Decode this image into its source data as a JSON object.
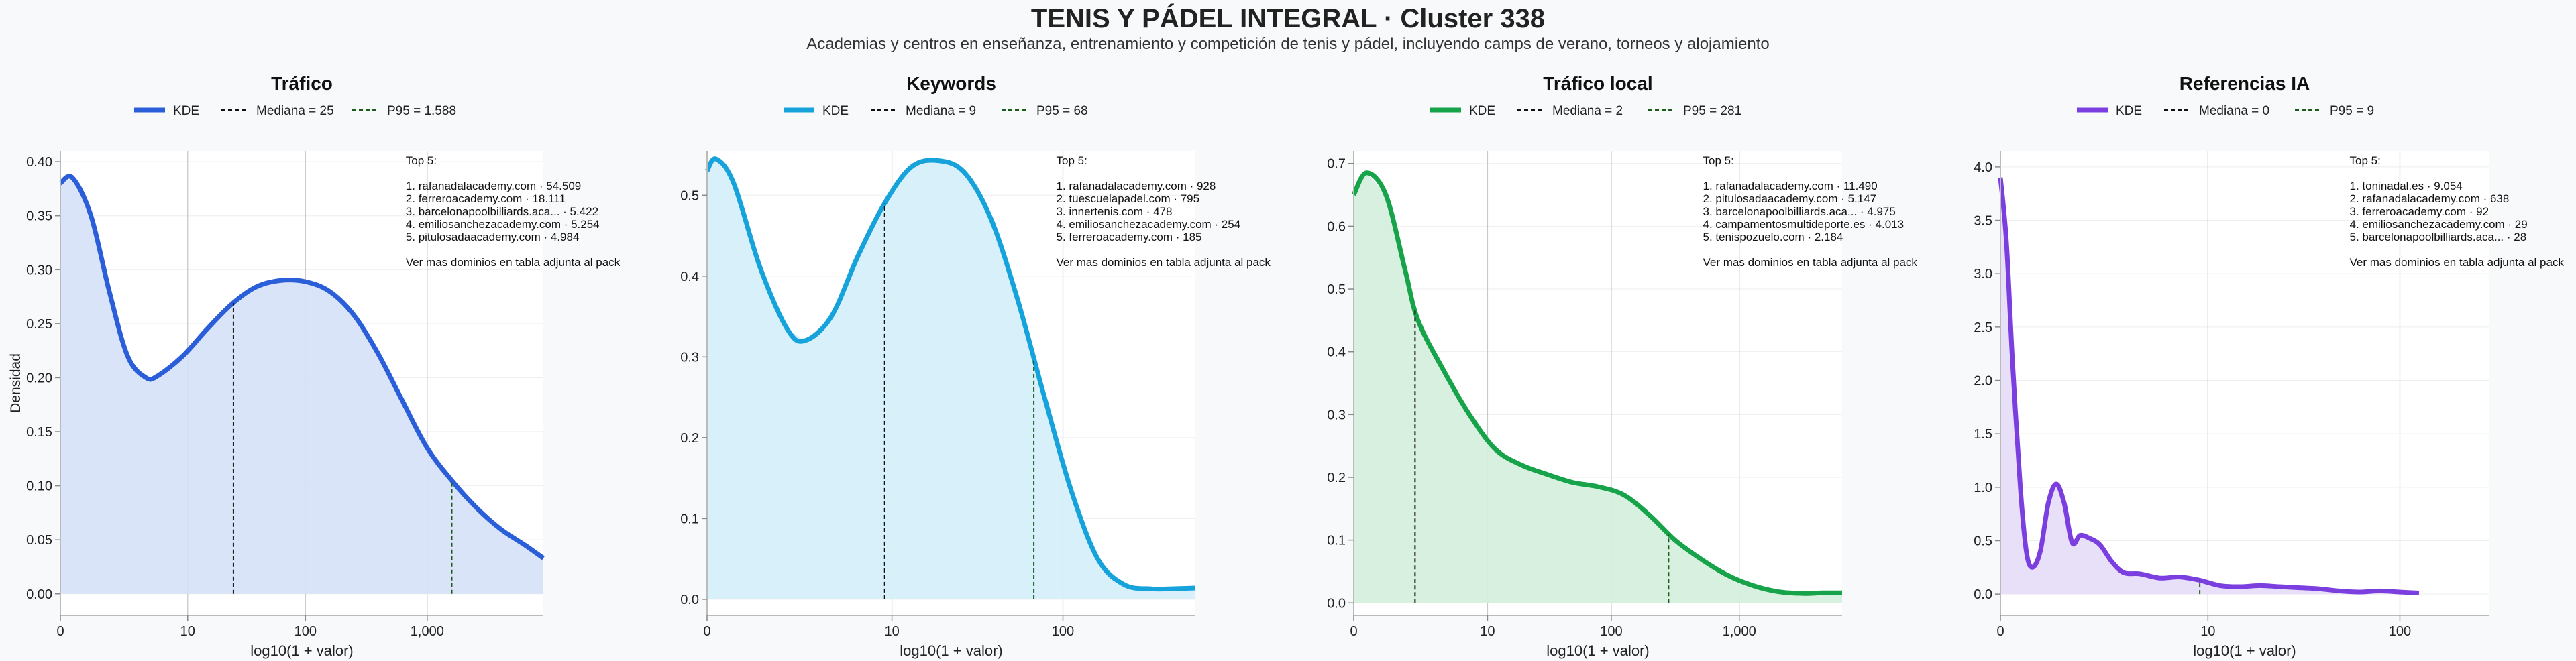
{
  "title": "TENIS Y PÁDEL INTEGRAL · Cluster 338",
  "subtitle": "Academias y centros en enseñanza, entrenamiento y competición de tenis y pádel, incluyendo camps de verano, torneos y alojamiento",
  "shared": {
    "ylabel": "Densidad",
    "xlabel": "log10(1 + valor)",
    "legend_kde": "KDE",
    "top_heading": "Top 5:",
    "footer_note": "Ver mas dominios en tabla adjunta al pack"
  },
  "chart_data": [
    {
      "type": "area",
      "title": "Tráfico",
      "xlabel": "log10(1 + valor)",
      "ylabel": "Densidad",
      "color": "#2b5fd9",
      "fill": "#d6e1f8",
      "xlim": [
        0,
        3.95
      ],
      "ylim": [
        -0.02,
        0.41
      ],
      "yticks": [
        0,
        0.05,
        0.1,
        0.15,
        0.2,
        0.25,
        0.3,
        0.35,
        0.4
      ],
      "ytick_labels": [
        "0.00",
        "0.05",
        "0.10",
        "0.15",
        "0.20",
        "0.25",
        "0.30",
        "0.35",
        "0.40"
      ],
      "xticks": [
        0,
        1.041,
        2.004,
        3.0
      ],
      "xtick_labels": [
        "0",
        "10",
        "100",
        "1,000"
      ],
      "x": [
        0,
        0.1,
        0.25,
        0.4,
        0.55,
        0.7,
        0.8,
        1.0,
        1.2,
        1.4,
        1.6,
        1.8,
        2.0,
        2.2,
        2.4,
        2.6,
        2.8,
        3.0,
        3.2,
        3.4,
        3.6,
        3.8,
        3.95
      ],
      "y": [
        0.38,
        0.385,
        0.35,
        0.28,
        0.22,
        0.2,
        0.202,
        0.22,
        0.245,
        0.268,
        0.284,
        0.29,
        0.289,
        0.28,
        0.258,
        0.222,
        0.178,
        0.135,
        0.105,
        0.08,
        0.06,
        0.045,
        0.033
      ],
      "median": {
        "x": 1.415,
        "label": "Mediana = 25"
      },
      "p95": {
        "x": 3.201,
        "label": "P95 = 1.588"
      },
      "top5": [
        "1. rafanadalacademy.com · 54.509",
        "2. ferreroacademy.com · 18.111",
        "3. barcelonapoolbilliards.aca... · 5.422",
        "4. emiliosanchezacademy.com · 5.254",
        "5. pitulosadaacademy.com · 4.984"
      ]
    },
    {
      "type": "area",
      "title": "Keywords",
      "xlabel": "log10(1 + valor)",
      "ylabel": "Densidad",
      "color": "#16a3db",
      "fill": "#d3eefa",
      "xlim": [
        0,
        2.75
      ],
      "ylim": [
        -0.02,
        0.555
      ],
      "yticks": [
        0,
        0.1,
        0.2,
        0.3,
        0.4,
        0.5
      ],
      "ytick_labels": [
        "0.0",
        "0.1",
        "0.2",
        "0.3",
        "0.4",
        "0.5"
      ],
      "xticks": [
        0,
        1.041,
        2.004
      ],
      "xtick_labels": [
        "0",
        "10",
        "100"
      ],
      "x": [
        0,
        0.05,
        0.15,
        0.3,
        0.45,
        0.55,
        0.7,
        0.85,
        1.0,
        1.15,
        1.3,
        1.45,
        1.6,
        1.75,
        1.9,
        2.05,
        2.2,
        2.35,
        2.5,
        2.6,
        2.75
      ],
      "y": [
        0.53,
        0.545,
        0.515,
        0.41,
        0.335,
        0.32,
        0.35,
        0.425,
        0.49,
        0.535,
        0.543,
        0.528,
        0.47,
        0.37,
        0.25,
        0.135,
        0.05,
        0.018,
        0.013,
        0.013,
        0.014
      ],
      "median": {
        "x": 1.0,
        "label": "Mediana = 9"
      },
      "p95": {
        "x": 1.84,
        "label": "P95 = 68"
      },
      "top5": [
        "1. rafanadalacademy.com · 928",
        "2. tuescuelapadel.com · 795",
        "3. innertenis.com · 478",
        "4. emiliosanchezacademy.com · 254",
        "5. ferreroacademy.com · 185"
      ]
    },
    {
      "type": "area",
      "title": "Tráfico local",
      "xlabel": "log10(1 + valor)",
      "ylabel": "Densidad",
      "color": "#16a34a",
      "fill": "#d4eedb",
      "xlim": [
        0,
        3.8
      ],
      "ylim": [
        -0.02,
        0.72
      ],
      "yticks": [
        0,
        0.1,
        0.2,
        0.3,
        0.4,
        0.5,
        0.6,
        0.7
      ],
      "ytick_labels": [
        "0.0",
        "0.1",
        "0.2",
        "0.3",
        "0.4",
        "0.5",
        "0.6",
        "0.7"
      ],
      "xticks": [
        0,
        1.041,
        2.004,
        3.0
      ],
      "xtick_labels": [
        "0",
        "10",
        "100",
        "1,000"
      ],
      "x": [
        0,
        0.1,
        0.25,
        0.4,
        0.5,
        0.7,
        0.9,
        1.1,
        1.3,
        1.5,
        1.7,
        1.9,
        2.1,
        2.3,
        2.5,
        2.7,
        2.9,
        3.1,
        3.3,
        3.5,
        3.65,
        3.8
      ],
      "y": [
        0.65,
        0.685,
        0.65,
        0.53,
        0.45,
        0.37,
        0.3,
        0.245,
        0.22,
        0.205,
        0.192,
        0.185,
        0.172,
        0.14,
        0.1,
        0.07,
        0.045,
        0.028,
        0.018,
        0.015,
        0.016,
        0.016
      ],
      "median": {
        "x": 0.477,
        "label": "Mediana = 2"
      },
      "p95": {
        "x": 2.45,
        "label": "P95 = 281"
      },
      "top5": [
        "1. rafanadalacademy.com · 11.490",
        "2. pitulosadaacademy.com · 5.147",
        "3. barcelonapoolbilliards.aca... · 4.975",
        "4. campamentosmultideporte.es · 4.013",
        "5. tenispozuelo.com · 2.184"
      ]
    },
    {
      "type": "area",
      "title": "Referencias IA",
      "xlabel": "log10(1 + valor)",
      "ylabel": "Densidad",
      "color": "#7b3fe0",
      "fill": "#e6dbf8",
      "xlim": [
        0,
        2.45
      ],
      "ylim": [
        -0.2,
        4.15
      ],
      "yticks": [
        0,
        0.5,
        1,
        1.5,
        2,
        2.5,
        3,
        3.5,
        4
      ],
      "ytick_labels": [
        "0.0",
        "0.5",
        "1.0",
        "1.5",
        "2.0",
        "2.5",
        "3.0",
        "3.5",
        "4.0"
      ],
      "xticks": [
        0,
        1.041,
        2.004
      ],
      "xtick_labels": [
        "0",
        "10",
        "100"
      ],
      "x": [
        0,
        0.03,
        0.06,
        0.1,
        0.13,
        0.16,
        0.2,
        0.24,
        0.28,
        0.32,
        0.36,
        0.4,
        0.45,
        0.5,
        0.56,
        0.62,
        0.7,
        0.8,
        0.9,
        1.0,
        1.1,
        1.2,
        1.3,
        1.4,
        1.5,
        1.6,
        1.7,
        1.8,
        1.9,
        2.0,
        2.1
      ],
      "y": [
        3.9,
        3.3,
        2.2,
        1.0,
        0.4,
        0.25,
        0.4,
        0.85,
        1.03,
        0.85,
        0.48,
        0.55,
        0.52,
        0.46,
        0.3,
        0.2,
        0.19,
        0.15,
        0.16,
        0.13,
        0.08,
        0.07,
        0.08,
        0.07,
        0.06,
        0.05,
        0.03,
        0.02,
        0.03,
        0.02,
        0.01
      ],
      "median": {
        "x": 0,
        "label": "Mediana = 0"
      },
      "p95": {
        "x": 1.0,
        "label": "P95 = 9"
      },
      "top5": [
        "1. toninadal.es · 9.054",
        "2. rafanadalacademy.com · 638",
        "3. ferreroacademy.com · 92",
        "4. emiliosanchezacademy.com · 29",
        "5. barcelonapoolbilliards.aca... · 28"
      ]
    }
  ]
}
